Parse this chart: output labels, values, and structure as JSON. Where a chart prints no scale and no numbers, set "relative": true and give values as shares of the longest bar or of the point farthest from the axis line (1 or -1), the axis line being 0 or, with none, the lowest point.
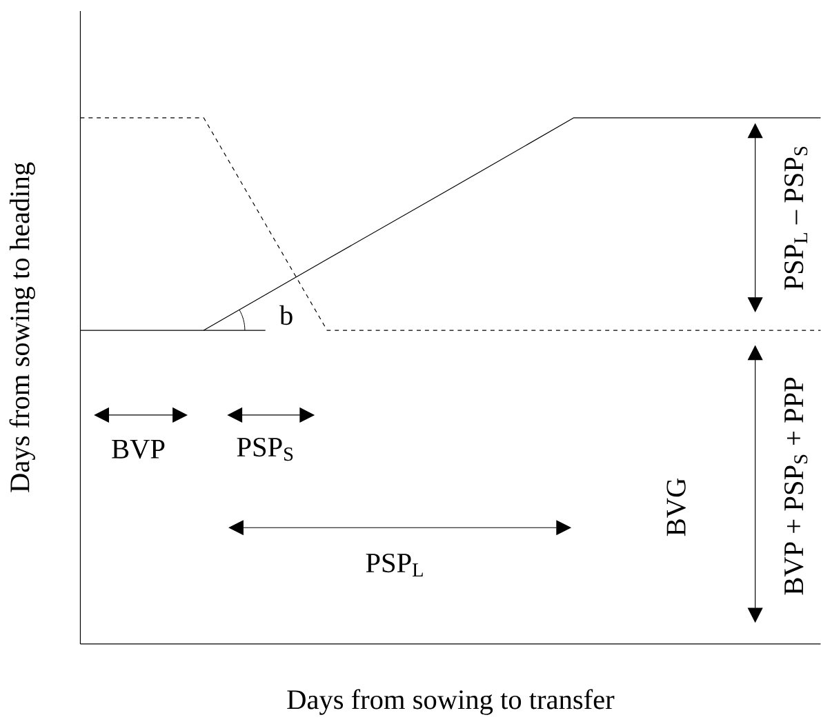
{
  "chart_data": {
    "type": "line",
    "relative": true,
    "xlabel": "Days from sowing to transfer",
    "ylabel": "Days from sowing to heading",
    "categories": [
      null,
      null,
      null,
      null,
      null,
      null,
      null
    ],
    "series": [
      {
        "color": "#000000",
        "line_style": "solid",
        "values": [
          0.596,
          0.596,
          0.731,
          0.865,
          1,
          1,
          1
        ]
      },
      {
        "color": "#000000",
        "line_style": "dashed",
        "values": [
          1,
          1,
          0.596,
          0.596,
          0.596,
          0.596,
          0.596
        ]
      }
    ],
    "annotations": [
      "b",
      "BVP",
      "PSP$_{S}$",
      "PSP$_{L}$",
      "BVG",
      "PSP$_{L}$ – PSP$_{S}$",
      "BVP + PSP$_{S}$ + PPP"
    ],
    "legend": false,
    "marker": "none"
  }
}
